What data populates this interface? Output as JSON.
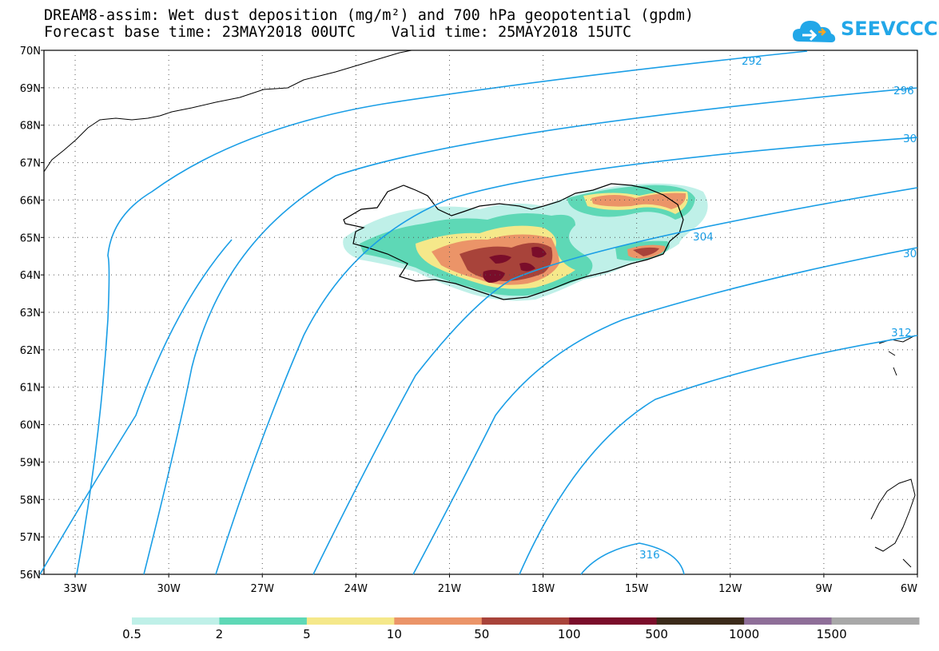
{
  "title": {
    "line1": "DREAM8-assim: Wet dust deposition (mg/m²) and 700 hPa geopotential (gpdm)",
    "line2": "Forecast base time: 23MAY2018 00UTC    Valid time: 25MAY2018 15UTC"
  },
  "logo": {
    "text": "SEEVCCC",
    "icon": "cloud-icon",
    "color": "#22a7e8"
  },
  "axes": {
    "lat_labels": [
      "70N",
      "69N",
      "68N",
      "67N",
      "66N",
      "65N",
      "64N",
      "63N",
      "62N",
      "61N",
      "60N",
      "59N",
      "58N",
      "57N",
      "56N"
    ],
    "lon_labels": [
      "33W",
      "30W",
      "27W",
      "24W",
      "21W",
      "18W",
      "15W",
      "12W",
      "9W",
      "6W"
    ],
    "lat_range": [
      56,
      70
    ],
    "lon_range": [
      -34,
      -6
    ]
  },
  "contours": {
    "color": "#1a9ee6",
    "labels": [
      "292",
      "296",
      "30",
      "304",
      "30",
      "312",
      "316"
    ]
  },
  "legend": {
    "colors": [
      "#bff0e8",
      "#5ed8b6",
      "#f5e88a",
      "#eb9468",
      "#a8433a",
      "#7a0d2a",
      "#3b2a1a",
      "#8e6e98",
      "#a8a8a8"
    ],
    "labels": [
      "0.5",
      "2",
      "5",
      "10",
      "50",
      "100",
      "500",
      "1000",
      "1500"
    ]
  }
}
